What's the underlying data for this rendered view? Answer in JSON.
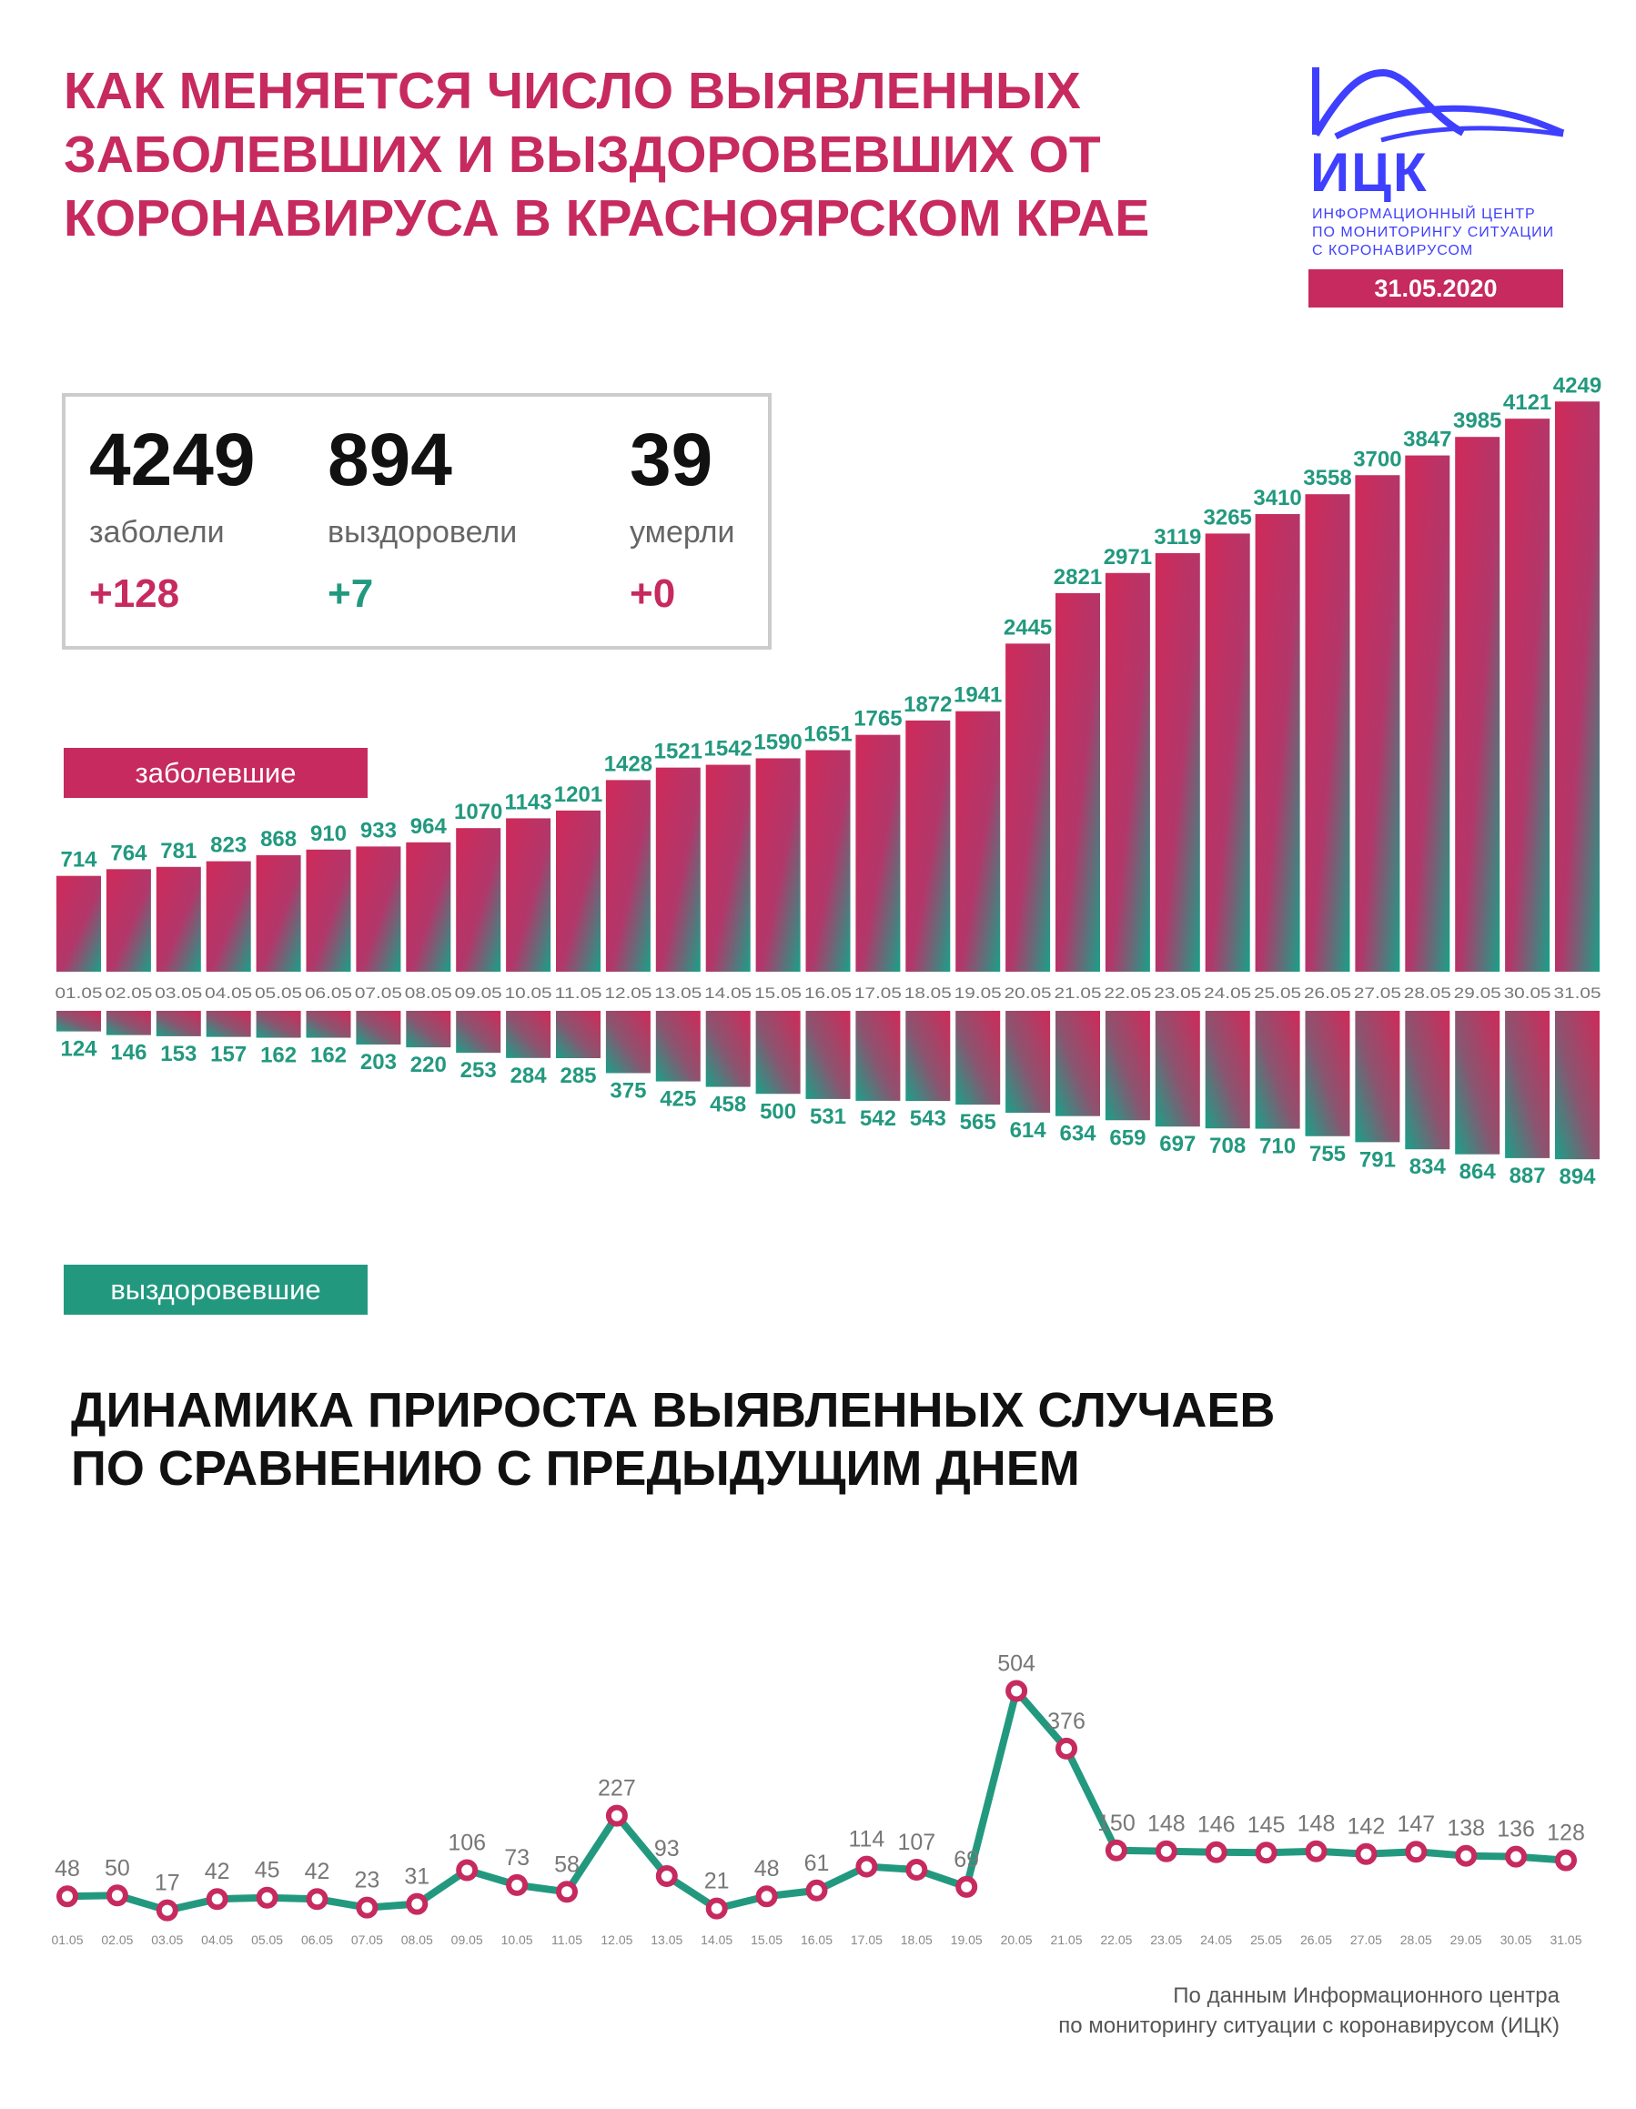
{
  "header": {
    "title_lines": [
      "КАК МЕНЯЕТСЯ ЧИСЛО ВЫЯВЛЕННЫХ",
      "ЗАБОЛЕВШИХ И ВЫЗДОРОВЕВШИХ ОТ",
      "КОРОНАВИРУСА В КРАСНОЯРСКОМ КРАЕ"
    ]
  },
  "logo": {
    "name": "ИЦК",
    "subtitle_lines": [
      "ИНФОРМАЦИОННЫЙ ЦЕНТР",
      "ПО МОНИТОРИНГУ СИТУАЦИИ",
      "С КОРОНАВИРУСОМ"
    ],
    "date": "31.05.2020"
  },
  "stats": {
    "infected": {
      "value": "4249",
      "label": "заболели",
      "delta": "+128"
    },
    "recovered": {
      "value": "894",
      "label": "выздоровели",
      "delta": "+7"
    },
    "deaths": {
      "value": "39",
      "label": "умерли",
      "delta": "+0"
    }
  },
  "legend": {
    "infected": "заболевшие",
    "recovered": "выздоровевшие"
  },
  "colors": {
    "accent": "#c62a5e",
    "teal": "#22997f",
    "logo": "#3f3fff"
  },
  "chart_data": [
    {
      "type": "bar",
      "categories": [
        "01.05",
        "02.05",
        "03.05",
        "04.05",
        "05.05",
        "06.05",
        "07.05",
        "08.05",
        "09.05",
        "10.05",
        "11.05",
        "12.05",
        "13.05",
        "14.05",
        "15.05",
        "16.05",
        "17.05",
        "18.05",
        "19.05",
        "20.05",
        "21.05",
        "22.05",
        "23.05",
        "24.05",
        "25.05",
        "26.05",
        "27.05",
        "28.05",
        "29.05",
        "30.05",
        "31.05"
      ],
      "series": [
        {
          "name": "заболевшие",
          "values": [
            714,
            764,
            781,
            823,
            868,
            910,
            933,
            964,
            1070,
            1143,
            1201,
            1428,
            1521,
            1542,
            1590,
            1651,
            1765,
            1872,
            1941,
            2445,
            2821,
            2971,
            3119,
            3265,
            3410,
            3558,
            3700,
            3847,
            3985,
            4121,
            4249
          ]
        },
        {
          "name": "выздоровевшие",
          "values": [
            124,
            146,
            153,
            157,
            162,
            162,
            203,
            220,
            253,
            284,
            285,
            375,
            425,
            458,
            500,
            531,
            542,
            543,
            565,
            614,
            634,
            659,
            697,
            708,
            710,
            755,
            791,
            834,
            864,
            887,
            894
          ]
        }
      ],
      "legend_position": "left",
      "grid": false
    },
    {
      "type": "line",
      "title_lines": [
        "ДИНАМИКА ПРИРОСТА ВЫЯВЛЕННЫХ СЛУЧАЕВ",
        "ПО СРАВНЕНИЮ С ПРЕДЫДУЩИМ ДНЕМ"
      ],
      "x": [
        "01.05",
        "02.05",
        "03.05",
        "04.05",
        "05.05",
        "06.05",
        "07.05",
        "08.05",
        "09.05",
        "10.05",
        "11.05",
        "12.05",
        "13.05",
        "14.05",
        "15.05",
        "16.05",
        "17.05",
        "18.05",
        "19.05",
        "20.05",
        "21.05",
        "22.05",
        "23.05",
        "24.05",
        "25.05",
        "26.05",
        "27.05",
        "28.05",
        "29.05",
        "30.05",
        "31.05"
      ],
      "values": [
        48,
        50,
        17,
        42,
        45,
        42,
        23,
        31,
        106,
        73,
        58,
        227,
        93,
        21,
        48,
        61,
        114,
        107,
        69,
        504,
        376,
        150,
        148,
        146,
        145,
        148,
        142,
        147,
        138,
        136,
        128
      ],
      "grid": false
    }
  ],
  "footer": {
    "lines": [
      "По данным Информационного центра",
      "по мониторингу ситуации с коронавирусом (ИЦК)"
    ]
  }
}
